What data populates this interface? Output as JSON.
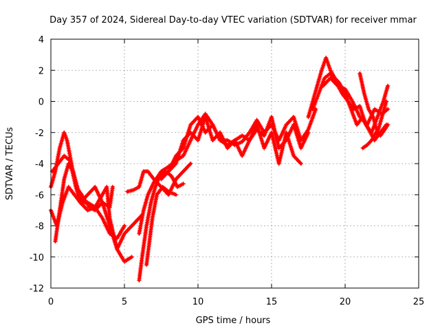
{
  "chart_data": {
    "type": "scatter",
    "title": "Day 357 of 2024, Sidereal Day-to-day VTEC variation (SDTVAR) for receiver mmar",
    "xlabel": "GPS time / hours",
    "ylabel": "SDTVAR / TECUs",
    "xlim": [
      0,
      25
    ],
    "ylim": [
      -12,
      4
    ],
    "xticks": [
      "0",
      "5",
      "10",
      "15",
      "20",
      "25"
    ],
    "yticks": [
      "-12",
      "-10",
      "-8",
      "-6",
      "-4",
      "-2",
      "0",
      "2",
      "4"
    ],
    "grid": true,
    "marker": "+",
    "color": "#ff0000",
    "series": [
      {
        "x": [
          0.0,
          0.3,
          0.6,
          0.9,
          1.1,
          1.4,
          1.7,
          2.0,
          2.5,
          3.0,
          3.5,
          4.0,
          4.5,
          5.0
        ],
        "y": [
          -5.5,
          -4.5,
          -3.0,
          -2.0,
          -2.5,
          -4.0,
          -5.5,
          -6.5,
          -7.0,
          -6.8,
          -7.5,
          -8.5,
          -8.8,
          -8.0
        ]
      },
      {
        "x": [
          0.0,
          0.4,
          0.8,
          1.2,
          1.6,
          2.0,
          2.5,
          3.0,
          3.5,
          4.0,
          4.5,
          5.0,
          5.5
        ],
        "y": [
          -7.0,
          -8.0,
          -6.5,
          -5.5,
          -6.0,
          -6.5,
          -6.0,
          -5.5,
          -6.5,
          -8.0,
          -9.5,
          -10.3,
          -10.0
        ]
      },
      {
        "x": [
          0.3,
          0.6,
          0.9,
          1.2,
          1.5,
          1.8,
          2.1,
          2.5,
          3.0,
          3.5,
          3.8,
          4.0,
          4.5,
          5.0,
          5.5,
          6.0,
          6.2
        ],
        "y": [
          -9.0,
          -7.0,
          -5.0,
          -4.0,
          -4.5,
          -5.5,
          -6.5,
          -6.5,
          -6.8,
          -6.0,
          -5.5,
          -7.5,
          -9.5,
          -8.5,
          -8.0,
          -7.5,
          -7.3
        ]
      },
      {
        "x": [
          0.1,
          0.5,
          0.9,
          1.3,
          1.7,
          2.1,
          2.6,
          3.0,
          3.5,
          4.0,
          4.2
        ],
        "y": [
          -4.5,
          -4.0,
          -3.5,
          -3.8,
          -5.5,
          -6.0,
          -6.8,
          -7.0,
          -6.5,
          -6.8,
          -5.5
        ]
      },
      {
        "x": [
          5.2,
          5.6,
          6.0,
          6.3,
          6.6,
          7.0,
          7.5,
          8.0,
          8.5,
          9.0,
          9.5
        ],
        "y": [
          -5.8,
          -5.7,
          -5.5,
          -4.5,
          -4.5,
          -5.0,
          -5.5,
          -6.0,
          -5.0,
          -4.5,
          -4.0
        ]
      },
      {
        "x": [
          6.0,
          6.2,
          6.5,
          6.8,
          7.1,
          7.4,
          7.8,
          8.2,
          8.6,
          9.0
        ],
        "y": [
          -11.5,
          -10.0,
          -8.0,
          -6.5,
          -5.5,
          -4.8,
          -4.5,
          -4.8,
          -5.5,
          -5.3
        ]
      },
      {
        "x": [
          6.5,
          6.7,
          6.9,
          7.2,
          7.6,
          8.0,
          8.5
        ],
        "y": [
          -10.5,
          -9.0,
          -7.5,
          -6.0,
          -5.5,
          -5.8,
          -6.0
        ]
      },
      {
        "x": [
          6.0,
          6.3,
          6.6,
          7.0,
          7.5,
          8.0,
          8.5,
          9.0,
          9.5,
          10.0,
          10.5,
          11.0,
          11.5,
          12.0,
          12.5,
          13.0,
          13.5,
          14.0,
          14.5,
          15.0,
          15.5,
          16.0,
          16.5,
          17.0,
          17.5,
          18.0
        ],
        "y": [
          -8.5,
          -7.0,
          -6.0,
          -5.2,
          -4.5,
          -4.2,
          -3.8,
          -3.5,
          -2.5,
          -1.5,
          -0.8,
          -1.5,
          -2.5,
          -2.5,
          -2.8,
          -2.6,
          -2.0,
          -1.2,
          -2.0,
          -1.5,
          -2.5,
          -1.5,
          -1.0,
          -2.5,
          -1.8,
          -0.5
        ]
      },
      {
        "x": [
          7.5,
          8.0,
          8.5,
          9.0,
          9.5,
          10.0,
          10.5,
          11.0,
          11.5,
          12.0,
          12.5,
          13.0,
          13.5,
          14.0,
          14.5,
          15.0,
          15.5,
          16.0,
          16.5,
          17.0
        ],
        "y": [
          -5.0,
          -4.5,
          -4.0,
          -2.5,
          -2.0,
          -2.5,
          -1.0,
          -2.5,
          -2.0,
          -3.0,
          -2.5,
          -3.5,
          -2.5,
          -1.5,
          -3.0,
          -2.0,
          -4.0,
          -2.0,
          -3.5,
          -4.0
        ]
      },
      {
        "x": [
          8.0,
          8.5,
          9.0,
          9.5,
          10.0,
          10.5,
          11.0,
          11.5,
          12.0,
          12.5,
          13.0,
          13.5,
          14.0,
          14.5,
          15.0,
          15.5,
          16.0,
          16.5,
          17.0,
          17.5
        ],
        "y": [
          -4.5,
          -3.5,
          -3.0,
          -1.5,
          -1.0,
          -2.0,
          -1.5,
          -2.5,
          -2.8,
          -2.5,
          -2.2,
          -2.5,
          -1.8,
          -2.2,
          -1.0,
          -3.0,
          -2.5,
          -1.5,
          -3.0,
          -2.0
        ]
      },
      {
        "x": [
          17.5,
          17.8,
          18.1,
          18.4,
          18.7,
          19.0,
          19.3,
          19.6,
          20.0,
          20.4,
          20.8,
          21.2,
          21.6,
          22.0,
          22.4,
          22.8
        ],
        "y": [
          -1.0,
          0.0,
          1.0,
          2.0,
          2.8,
          2.0,
          1.5,
          1.2,
          0.5,
          -0.5,
          -1.5,
          -1.0,
          -1.8,
          -2.5,
          -2.0,
          -1.5
        ]
      },
      {
        "x": [
          17.8,
          18.2,
          18.6,
          19.0,
          19.4,
          19.8,
          20.2,
          20.6,
          21.0,
          21.4,
          21.8,
          22.2,
          22.6,
          22.9
        ],
        "y": [
          -0.5,
          0.5,
          1.5,
          1.8,
          1.2,
          0.5,
          0.0,
          -0.5,
          -0.3,
          -1.5,
          -2.0,
          -1.0,
          0.0,
          1.0
        ]
      },
      {
        "x": [
          18.5,
          19.0,
          19.5,
          20.0,
          20.5,
          21.0,
          21.5,
          22.0,
          22.5,
          22.9
        ],
        "y": [
          1.0,
          1.5,
          1.0,
          0.8,
          0.0,
          -1.0,
          -1.5,
          -0.5,
          -0.8,
          -0.5
        ]
      },
      {
        "x": [
          21.0,
          21.3,
          21.6,
          21.9,
          22.2,
          22.5,
          22.8
        ],
        "y": [
          1.8,
          0.5,
          -0.5,
          -1.0,
          -2.0,
          -1.0,
          0.0
        ]
      },
      {
        "x": [
          21.2,
          21.5,
          21.8,
          22.1,
          22.4,
          22.7,
          22.9
        ],
        "y": [
          -3.0,
          -2.8,
          -2.5,
          -2.0,
          -2.2,
          -1.8,
          -1.5
        ]
      }
    ]
  }
}
